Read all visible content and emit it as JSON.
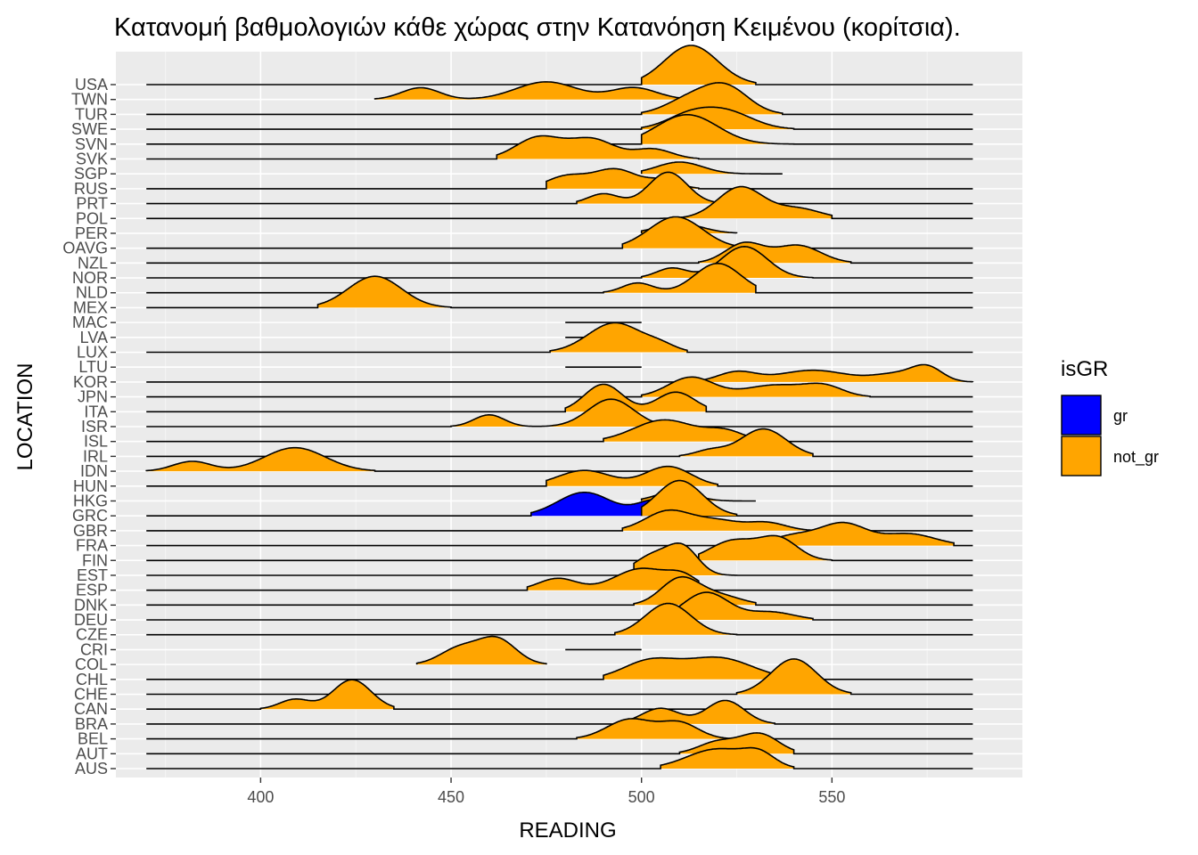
{
  "chart_data": {
    "type": "ridgeline",
    "title": "Κατανομή βαθμολογιών κάθε χώρας στην Κατανόηση Κειμένου (κορίτσια).",
    "xlabel": "READING",
    "ylabel": "LOCATION",
    "xlim": [
      362,
      600
    ],
    "x_ticks": [
      400,
      450,
      500,
      550
    ],
    "grid": true,
    "legend": {
      "title": "isGR",
      "position": "right",
      "entries": [
        {
          "label": "gr",
          "color": "#0000ff"
        },
        {
          "label": "not_gr",
          "color": "#ffa500"
        }
      ]
    },
    "baseline_range": [
      370,
      587
    ],
    "locations": [
      "AUS",
      "AUT",
      "BEL",
      "BRA",
      "CAN",
      "CHE",
      "CHL",
      "COL",
      "CRI",
      "CZE",
      "DEU",
      "DNK",
      "ESP",
      "EST",
      "FIN",
      "FRA",
      "GBR",
      "GRC",
      "HKG",
      "HUN",
      "IDN",
      "IRL",
      "ISL",
      "ISR",
      "ITA",
      "JPN",
      "KOR",
      "LTU",
      "LUX",
      "LVA",
      "MAC",
      "MEX",
      "NLD",
      "NOR",
      "NZL",
      "OAVG",
      "PER",
      "POL",
      "PRT",
      "RUS",
      "SGP",
      "SVK",
      "SVN",
      "SWE",
      "TUR",
      "TWN",
      "USA"
    ],
    "series": [
      {
        "location": "USA",
        "group": "not_gr",
        "range": [
          500,
          530
        ],
        "peaks": [
          [
            513,
            2.0,
            7
          ]
        ],
        "baseline": true
      },
      {
        "location": "TWN",
        "group": "not_gr",
        "range": [
          430,
          515
        ],
        "peaks": [
          [
            442,
            0.6,
            5
          ],
          [
            475,
            0.9,
            8
          ],
          [
            498,
            0.6,
            6
          ]
        ],
        "baseline": false
      },
      {
        "location": "TUR",
        "group": "not_gr",
        "range": [
          500,
          537
        ],
        "peaks": [
          [
            512,
            0.7,
            6
          ],
          [
            522,
            1.4,
            6
          ]
        ],
        "baseline": true
      },
      {
        "location": "SWE",
        "group": "not_gr",
        "range": [
          500,
          540
        ],
        "peaks": [
          [
            512,
            0.6,
            6
          ],
          [
            522,
            0.9,
            7
          ]
        ],
        "baseline": true
      },
      {
        "location": "SVN",
        "group": "not_gr",
        "range": [
          500,
          540
        ],
        "peaks": [
          [
            512,
            1.5,
            8
          ]
        ],
        "baseline": true
      },
      {
        "location": "SVK",
        "group": "not_gr",
        "range": [
          462,
          515
        ],
        "peaks": [
          [
            473,
            1.1,
            6
          ],
          [
            487,
            1.0,
            6
          ],
          [
            503,
            0.5,
            5
          ]
        ],
        "baseline": true
      },
      {
        "location": "SGP",
        "group": "not_gr",
        "range": [
          500,
          537
        ],
        "peaks": [
          [
            510,
            0.6,
            6
          ]
        ],
        "baseline": false
      },
      {
        "location": "RUS",
        "group": "not_gr",
        "range": [
          475,
          515
        ],
        "peaks": [
          [
            480,
            0.6,
            5
          ],
          [
            493,
            1.0,
            6
          ],
          [
            506,
            0.4,
            4
          ]
        ],
        "baseline": true
      },
      {
        "location": "PRT",
        "group": "not_gr",
        "range": [
          483,
          520
        ],
        "peaks": [
          [
            490,
            0.5,
            4
          ],
          [
            507,
            1.6,
            5
          ]
        ],
        "baseline": true
      },
      {
        "location": "POL",
        "group": "not_gr",
        "range": [
          505,
          550
        ],
        "peaks": [
          [
            526,
            1.6,
            6
          ],
          [
            541,
            0.5,
            6
          ]
        ],
        "baseline": true
      },
      {
        "location": "PER",
        "group": "not_gr",
        "range": [
          500,
          525
        ],
        "peaks": [
          [
            510,
            0.5,
            6
          ]
        ],
        "baseline": false
      },
      {
        "location": "OAVG",
        "group": "not_gr",
        "range": [
          495,
          525
        ],
        "peaks": [
          [
            509,
            1.6,
            7
          ]
        ],
        "baseline": true
      },
      {
        "location": "NZL",
        "group": "not_gr",
        "range": [
          515,
          555
        ],
        "peaks": [
          [
            527,
            1.0,
            5
          ],
          [
            541,
            0.9,
            6
          ]
        ],
        "baseline": true
      },
      {
        "location": "NOR",
        "group": "not_gr",
        "range": [
          500,
          545
        ],
        "peaks": [
          [
            508,
            0.5,
            4
          ],
          [
            527,
            1.6,
            6
          ]
        ],
        "baseline": true
      },
      {
        "location": "NLD",
        "group": "not_gr",
        "range": [
          490,
          530
        ],
        "peaks": [
          [
            499,
            0.5,
            4
          ],
          [
            520,
            1.5,
            6
          ]
        ],
        "baseline": true
      },
      {
        "location": "MEX",
        "group": "not_gr",
        "range": [
          415,
          450
        ],
        "peaks": [
          [
            430,
            1.6,
            7
          ]
        ],
        "baseline": true
      },
      {
        "location": "MAC",
        "group": "not_gr",
        "range": [
          480,
          500
        ],
        "peaks": [
          [
            490,
            0.0,
            1
          ]
        ],
        "baseline": false
      },
      {
        "location": "LVA",
        "group": "not_gr",
        "range": [
          480,
          500
        ],
        "peaks": [
          [
            490,
            0.0,
            1
          ]
        ],
        "baseline": false
      },
      {
        "location": "LUX",
        "group": "not_gr",
        "range": [
          476,
          512
        ],
        "peaks": [
          [
            493,
            1.5,
            7
          ],
          [
            505,
            0.3,
            4
          ]
        ],
        "baseline": true
      },
      {
        "location": "LTU",
        "group": "not_gr",
        "range": [
          480,
          500
        ],
        "peaks": [
          [
            490,
            0.0,
            1
          ]
        ],
        "baseline": false
      },
      {
        "location": "KOR",
        "group": "not_gr",
        "range": [
          510,
          587
        ],
        "peaks": [
          [
            525,
            0.5,
            5
          ],
          [
            545,
            0.6,
            9
          ],
          [
            567,
            0.4,
            6
          ],
          [
            575,
            0.7,
            4
          ]
        ],
        "baseline": true
      },
      {
        "location": "JPN",
        "group": "not_gr",
        "range": [
          500,
          560
        ],
        "peaks": [
          [
            513,
            1.0,
            6
          ],
          [
            535,
            0.6,
            8
          ],
          [
            548,
            0.5,
            5
          ]
        ],
        "baseline": true
      },
      {
        "location": "ITA",
        "group": "not_gr",
        "range": [
          480,
          517
        ],
        "peaks": [
          [
            490,
            1.4,
            5
          ],
          [
            509,
            1.0,
            5
          ]
        ],
        "baseline": true
      },
      {
        "location": "ISR",
        "group": "not_gr",
        "range": [
          450,
          510
        ],
        "peaks": [
          [
            460,
            0.6,
            4
          ],
          [
            492,
            1.4,
            6
          ]
        ],
        "baseline": true
      },
      {
        "location": "ISL",
        "group": "not_gr",
        "range": [
          490,
          535
        ],
        "peaks": [
          [
            506,
            1.1,
            8
          ],
          [
            522,
            0.5,
            5
          ]
        ],
        "baseline": true
      },
      {
        "location": "IRL",
        "group": "not_gr",
        "range": [
          510,
          545
        ],
        "peaks": [
          [
            518,
            0.3,
            4
          ],
          [
            532,
            1.4,
            6
          ]
        ],
        "baseline": true
      },
      {
        "location": "IDN",
        "group": "not_gr",
        "range": [
          370,
          430
        ],
        "peaks": [
          [
            382,
            0.5,
            5
          ],
          [
            409,
            1.2,
            8
          ]
        ],
        "baseline": true
      },
      {
        "location": "HUN",
        "group": "not_gr",
        "range": [
          475,
          520
        ],
        "peaks": [
          [
            485,
            0.8,
            7
          ],
          [
            507,
            1.0,
            6
          ]
        ],
        "baseline": true
      },
      {
        "location": "HKG",
        "group": "not_gr",
        "range": [
          500,
          530
        ],
        "peaks": [
          [
            509,
            0.5,
            5
          ]
        ],
        "baseline": false
      },
      {
        "location": "GRC",
        "group": "gr",
        "range": [
          471,
          510
        ],
        "peaks": [
          [
            485,
            1.2,
            7
          ],
          [
            504,
            0.8,
            5
          ]
        ],
        "baseline": true
      },
      {
        "location": "GRC",
        "group": "not_gr",
        "range": [
          500,
          525
        ],
        "peaks": [
          [
            510,
            1.8,
            6
          ]
        ],
        "baseline": false
      },
      {
        "location": "GBR",
        "group": "not_gr",
        "range": [
          495,
          545
        ],
        "peaks": [
          [
            507,
            1.0,
            6
          ],
          [
            520,
            0.5,
            6
          ],
          [
            533,
            0.4,
            5
          ]
        ],
        "baseline": true
      },
      {
        "location": "FRA",
        "group": "not_gr",
        "range": [
          525,
          582
        ],
        "peaks": [
          [
            540,
            0.5,
            6
          ],
          [
            553,
            1.1,
            6
          ],
          [
            570,
            0.6,
            7
          ]
        ],
        "baseline": true
      },
      {
        "location": "FIN",
        "group": "not_gr",
        "range": [
          515,
          550
        ],
        "peaks": [
          [
            524,
            1.0,
            6
          ],
          [
            536,
            1.1,
            5
          ]
        ],
        "baseline": true
      },
      {
        "location": "EST",
        "group": "not_gr",
        "range": [
          498,
          525
        ],
        "peaks": [
          [
            503,
            1.0,
            5
          ],
          [
            511,
            1.3,
            4
          ]
        ],
        "baseline": true
      },
      {
        "location": "ESP",
        "group": "not_gr",
        "range": [
          470,
          515
        ],
        "peaks": [
          [
            478,
            0.6,
            5
          ],
          [
            500,
            1.1,
            7
          ],
          [
            511,
            0.6,
            4
          ]
        ],
        "baseline": true
      },
      {
        "location": "DNK",
        "group": "not_gr",
        "range": [
          498,
          530
        ],
        "peaks": [
          [
            510,
            1.3,
            5
          ],
          [
            520,
            0.5,
            6
          ]
        ],
        "baseline": true
      },
      {
        "location": "DEU",
        "group": "not_gr",
        "range": [
          500,
          545
        ],
        "peaks": [
          [
            517,
            1.4,
            6
          ],
          [
            534,
            0.4,
            6
          ]
        ],
        "baseline": true
      },
      {
        "location": "CZE",
        "group": "not_gr",
        "range": [
          493,
          525
        ],
        "peaks": [
          [
            507,
            1.6,
            6
          ]
        ],
        "baseline": true
      },
      {
        "location": "CRI",
        "group": "not_gr",
        "range": [
          480,
          500
        ],
        "peaks": [
          [
            490,
            0.0,
            1
          ]
        ],
        "baseline": false
      },
      {
        "location": "COL",
        "group": "not_gr",
        "range": [
          441,
          475
        ],
        "peaks": [
          [
            452,
            0.8,
            5
          ],
          [
            462,
            1.3,
            5
          ]
        ],
        "baseline": false
      },
      {
        "location": "CHL",
        "group": "not_gr",
        "range": [
          490,
          545
        ],
        "peaks": [
          [
            502,
            0.9,
            7
          ],
          [
            520,
            1.1,
            9
          ]
        ],
        "baseline": true
      },
      {
        "location": "CHE",
        "group": "not_gr",
        "range": [
          525,
          555
        ],
        "peaks": [
          [
            540,
            1.8,
            6
          ]
        ],
        "baseline": true
      },
      {
        "location": "CAN",
        "group": "not_gr",
        "range": [
          400,
          435
        ],
        "peaks": [
          [
            409,
            0.5,
            4
          ],
          [
            424,
            1.5,
            5
          ]
        ],
        "baseline": true
      },
      {
        "location": "BRA",
        "group": "not_gr",
        "range": [
          495,
          535
        ],
        "peaks": [
          [
            505,
            0.8,
            5
          ],
          [
            522,
            1.2,
            5
          ]
        ],
        "baseline": true
      },
      {
        "location": "BEL",
        "group": "not_gr",
        "range": [
          483,
          525
        ],
        "peaks": [
          [
            497,
            1.0,
            6
          ],
          [
            510,
            0.8,
            5
          ]
        ],
        "baseline": true
      },
      {
        "location": "AUT",
        "group": "not_gr",
        "range": [
          510,
          540
        ],
        "peaks": [
          [
            520,
            0.6,
            5
          ],
          [
            531,
            1.0,
            5
          ]
        ],
        "baseline": true
      },
      {
        "location": "AUS",
        "group": "not_gr",
        "range": [
          505,
          540
        ],
        "peaks": [
          [
            520,
            1.0,
            8
          ],
          [
            531,
            0.6,
            4
          ]
        ],
        "baseline": true
      }
    ]
  }
}
